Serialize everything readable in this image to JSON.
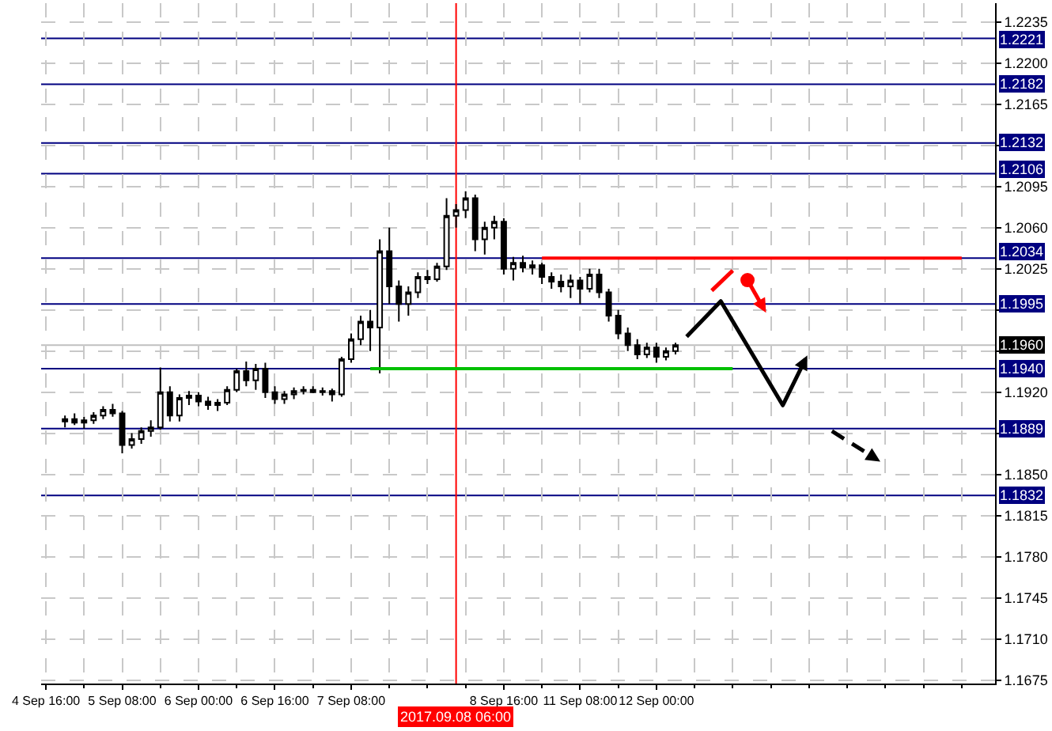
{
  "chart_data": {
    "type": "candlestick",
    "color": "#000000",
    "categories": [
      "4 Sep 16:00",
      null,
      null,
      null,
      null,
      null,
      null,
      null,
      "5 Sep 08:00",
      null,
      null,
      null,
      null,
      null,
      null,
      null,
      "6 Sep 00:00",
      null,
      null,
      null,
      null,
      null,
      null,
      null,
      "6 Sep 16:00",
      null,
      null,
      null,
      null,
      null,
      null,
      null,
      "7 Sep 08:00",
      null,
      null,
      null,
      null,
      null,
      null,
      null,
      null,
      null,
      null,
      "2017.09.08 06:00",
      null,
      null,
      null,
      null,
      "8 Sep 16:00",
      null,
      null,
      null,
      null,
      null,
      null,
      null,
      "11 Sep 08:00",
      null,
      null,
      null,
      null,
      null,
      null,
      null,
      "12 Sep 00:00",
      null,
      null,
      null,
      null,
      null,
      null,
      null,
      null,
      null,
      null,
      null,
      null,
      null,
      null,
      null,
      null,
      null,
      null,
      null,
      null,
      null,
      null,
      null,
      null,
      null,
      null,
      null,
      null,
      null,
      null,
      null,
      null,
      null,
      null,
      null
    ],
    "ohlc": [
      null,
      null,
      [
        1.1895,
        1.19,
        1.189,
        1.1897
      ],
      [
        1.1897,
        1.1902,
        1.1892,
        1.1894
      ],
      [
        1.1894,
        1.1899,
        1.1889,
        1.1896
      ],
      [
        1.1896,
        1.1903,
        1.1893,
        1.19
      ],
      [
        1.19,
        1.1908,
        1.1897,
        1.1905
      ],
      [
        1.1905,
        1.191,
        1.1899,
        1.1902
      ],
      [
        1.1902,
        1.1904,
        1.1868,
        1.1875
      ],
      [
        1.1875,
        1.1885,
        1.1872,
        1.188
      ],
      [
        1.188,
        1.189,
        1.1876,
        1.1887
      ],
      [
        1.1887,
        1.1896,
        1.1882,
        1.189
      ],
      [
        1.189,
        1.1941,
        1.1888,
        1.192
      ],
      [
        1.192,
        1.1925,
        1.1895,
        1.19
      ],
      [
        1.19,
        1.1918,
        1.1895,
        1.1915
      ],
      [
        1.1915,
        1.1921,
        1.1909,
        1.1917
      ],
      [
        1.1917,
        1.192,
        1.1908,
        1.1912
      ],
      [
        1.1912,
        1.1916,
        1.1905,
        1.1909
      ],
      [
        1.1909,
        1.1914,
        1.1904,
        1.1911
      ],
      [
        1.1911,
        1.1925,
        1.1909,
        1.1922
      ],
      [
        1.1922,
        1.194,
        1.192,
        1.1938
      ],
      [
        1.1938,
        1.1946,
        1.1925,
        1.193
      ],
      [
        1.193,
        1.1944,
        1.1922,
        1.194
      ],
      [
        1.194,
        1.1945,
        1.1915,
        1.192
      ],
      [
        1.192,
        1.1925,
        1.191,
        1.1914
      ],
      [
        1.1914,
        1.1921,
        1.191,
        1.1918
      ],
      [
        1.1918,
        1.1924,
        1.1914,
        1.1921
      ],
      [
        1.1921,
        1.1925,
        1.1918,
        1.1922
      ],
      [
        1.1922,
        1.1925,
        1.1919,
        1.192
      ],
      [
        1.192,
        1.1924,
        1.1917,
        1.1921
      ],
      [
        1.1921,
        1.1923,
        1.1912,
        1.1918
      ],
      [
        1.1918,
        1.195,
        1.1916,
        1.1948
      ],
      [
        1.1948,
        1.197,
        1.1945,
        1.1965
      ],
      [
        1.1965,
        1.1985,
        1.196,
        1.198
      ],
      [
        1.198,
        1.199,
        1.1955,
        1.1975
      ],
      [
        1.1975,
        1.205,
        1.1936,
        1.204
      ],
      [
        1.204,
        1.206,
        1.1995,
        1.201
      ],
      [
        1.201,
        1.2015,
        1.198,
        1.1995
      ],
      [
        1.1995,
        1.201,
        1.1985,
        1.2005
      ],
      [
        1.2005,
        1.2022,
        1.2,
        1.2018
      ],
      [
        1.2018,
        1.2024,
        1.2012,
        1.2016
      ],
      [
        1.2016,
        1.203,
        1.2014,
        1.2027
      ],
      [
        1.2027,
        1.2085,
        1.2024,
        1.207
      ],
      [
        1.207,
        1.208,
        1.206,
        1.2075
      ],
      [
        1.2075,
        1.2091,
        1.2068,
        1.2085
      ],
      [
        1.2085,
        1.2088,
        1.204,
        1.205
      ],
      [
        1.205,
        1.2065,
        1.2037,
        1.206
      ],
      [
        1.206,
        1.207,
        1.205,
        1.2065
      ],
      [
        1.2065,
        1.2068,
        1.202,
        1.2025
      ],
      [
        1.2025,
        1.2035,
        1.2015,
        1.203
      ],
      [
        1.203,
        1.2036,
        1.2022,
        1.2026
      ],
      [
        1.2026,
        1.2032,
        1.202,
        1.2028
      ],
      [
        1.2028,
        1.203,
        1.2012,
        1.2018
      ],
      [
        1.2018,
        1.2022,
        1.2008,
        1.2014
      ],
      [
        1.2014,
        1.202,
        1.2005,
        1.201
      ],
      [
        1.201,
        1.202,
        1.2,
        1.2015
      ],
      [
        1.2015,
        1.2018,
        1.1995,
        1.2008
      ],
      [
        1.2008,
        1.2025,
        1.2005,
        1.202
      ],
      [
        1.202,
        1.2025,
        1.2,
        1.2005
      ],
      [
        1.2005,
        1.2008,
        1.198,
        1.1985
      ],
      [
        1.1985,
        1.199,
        1.1965,
        1.197
      ],
      [
        1.197,
        1.1975,
        1.1955,
        1.196
      ],
      [
        1.196,
        1.1965,
        1.1948,
        1.1952
      ],
      [
        1.1952,
        1.1962,
        1.1949,
        1.1958
      ],
      [
        1.1958,
        1.1962,
        1.1945,
        1.195
      ],
      [
        1.195,
        1.1958,
        1.1947,
        1.1955
      ],
      [
        1.1955,
        1.1962,
        1.1952,
        1.196
      ],
      null,
      null,
      null,
      null,
      null,
      null,
      null,
      null,
      null,
      null,
      null,
      null,
      null,
      null,
      null,
      null,
      null,
      null,
      null,
      null,
      null,
      null,
      null,
      null,
      null,
      null,
      null,
      null,
      null,
      null,
      null,
      null,
      null
    ],
    "series": [
      {
        "type": "line",
        "color": "#ff0000",
        "values": [
          null,
          null,
          null,
          null,
          null,
          null,
          null,
          null,
          null,
          null,
          null,
          null,
          null,
          null,
          null,
          null,
          null,
          null,
          null,
          null,
          null,
          null,
          null,
          null,
          null,
          null,
          null,
          null,
          null,
          null,
          null,
          null,
          null,
          null,
          null,
          null,
          null,
          null,
          null,
          null,
          null,
          null,
          null,
          null,
          null,
          null,
          null,
          null,
          null,
          null,
          null,
          null,
          1.2034,
          1.2034,
          1.2034,
          1.2034,
          1.2034,
          1.2034,
          1.2034,
          1.2034,
          1.2034,
          1.2034,
          1.2034,
          1.2034,
          1.2034,
          1.2034,
          1.2034,
          1.2034,
          1.2034,
          1.2034,
          1.2034,
          1.2034,
          1.2034,
          1.2034,
          1.2034,
          1.2034,
          1.2034,
          1.2034,
          1.2034,
          1.2034,
          1.2034,
          1.2034,
          1.2034,
          1.2034,
          1.2034,
          1.2034,
          1.2034,
          1.2034,
          1.2034,
          1.2034,
          1.2034,
          1.2034,
          1.2034,
          1.2034,
          1.2034,
          1.2034,
          1.2034,
          null,
          null,
          null
        ]
      },
      {
        "type": "line",
        "color": "#00c000",
        "values": [
          null,
          null,
          null,
          null,
          null,
          null,
          null,
          null,
          null,
          null,
          null,
          null,
          null,
          null,
          null,
          null,
          null,
          null,
          null,
          null,
          null,
          null,
          null,
          null,
          null,
          null,
          null,
          null,
          null,
          null,
          null,
          null,
          null,
          null,
          1.194,
          1.194,
          1.194,
          1.194,
          1.194,
          1.194,
          1.194,
          1.194,
          1.194,
          1.194,
          1.194,
          1.194,
          1.194,
          1.194,
          1.194,
          1.194,
          1.194,
          1.194,
          1.194,
          1.194,
          1.194,
          1.194,
          1.194,
          1.194,
          1.194,
          1.194,
          1.194,
          1.194,
          1.194,
          1.194,
          1.194,
          1.194,
          1.194,
          1.194,
          1.194,
          1.194,
          1.194,
          1.194,
          1.194,
          null,
          null,
          null,
          null,
          null,
          null,
          null,
          null,
          null,
          null,
          null,
          null,
          null,
          null,
          null,
          null,
          null,
          null,
          null,
          null,
          null,
          null,
          null,
          null,
          null,
          null,
          null
        ]
      }
    ],
    "ylim": [
      1.1672,
      1.2251
    ],
    "yticks": [
      {
        "value": 1.1675,
        "label": "1.1675"
      },
      {
        "value": 1.171,
        "label": "1.1710"
      },
      {
        "value": 1.1745,
        "label": "1.1745"
      },
      {
        "value": 1.178,
        "label": "1.1780"
      },
      {
        "value": 1.1815,
        "label": "1.1815"
      },
      {
        "value": 1.185,
        "label": "1.1850"
      },
      {
        "value": 1.1885,
        "label": null
      },
      {
        "value": 1.192,
        "label": "1.1920"
      },
      {
        "value": 1.1955,
        "label": null
      },
      {
        "value": 1.199,
        "label": null
      },
      {
        "value": 1.2025,
        "label": "1.2025"
      },
      {
        "value": 1.206,
        "label": "1.2060"
      },
      {
        "value": 1.2095,
        "label": "1.2095"
      },
      {
        "value": 1.213,
        "label": null
      },
      {
        "value": 1.2165,
        "label": "1.2165"
      },
      {
        "value": 1.22,
        "label": "1.2200"
      },
      {
        "value": 1.2235,
        "label": "1.2235"
      }
    ],
    "grid": true,
    "ref_lines": [
      {
        "axis": "y",
        "value": 1.2221,
        "label": "1.2221",
        "color": "#000080"
      },
      {
        "axis": "y",
        "value": 1.2182,
        "label": "1.2182",
        "color": "#000080"
      },
      {
        "axis": "y",
        "value": 1.2132,
        "label": "1.2132",
        "color": "#000080"
      },
      {
        "axis": "y",
        "value": 1.2106,
        "label": "1.2106",
        "color": "#000080"
      },
      {
        "axis": "y",
        "value": 1.2034,
        "label": "1.2034",
        "color": "#000080"
      },
      {
        "axis": "y",
        "value": 1.1995,
        "label": "1.1995",
        "color": "#000080"
      },
      {
        "axis": "y",
        "value": 1.196,
        "label": "1.1960",
        "color": "#c0c0c0"
      },
      {
        "axis": "y",
        "value": 1.194,
        "label": "1.1940",
        "color": "#000080"
      },
      {
        "axis": "y",
        "value": 1.1889,
        "label": "1.1889",
        "color": "#000080"
      },
      {
        "axis": "y",
        "value": 1.1832,
        "label": "1.1832",
        "color": "#000080"
      },
      {
        "axis": "x",
        "value": "2017.09.08 06:00",
        "color": "#ff0000"
      }
    ]
  }
}
